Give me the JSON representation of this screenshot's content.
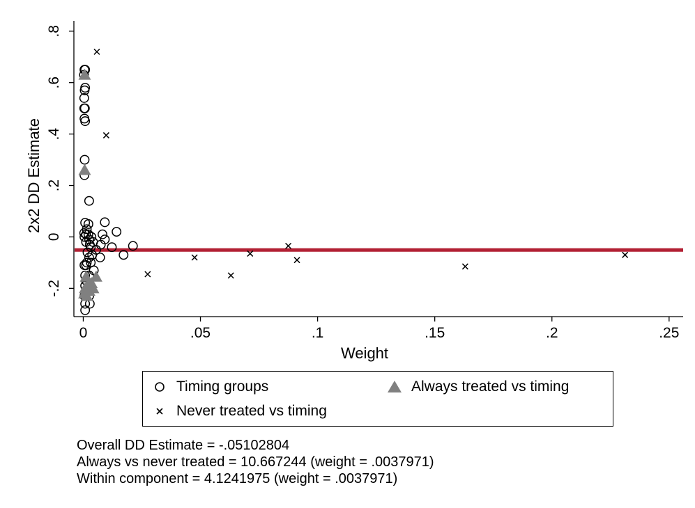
{
  "chart_data": {
    "type": "scatter",
    "xlabel": "Weight",
    "ylabel": "2x2 DD Estimate",
    "xlim": [
      -0.004,
      0.256
    ],
    "ylim": [
      -0.31,
      0.84
    ],
    "xticks": [
      0,
      0.05,
      0.1,
      0.15,
      0.2,
      0.25
    ],
    "xtick_labels": [
      "0",
      ".05",
      ".1",
      ".15",
      ".2",
      ".25"
    ],
    "yticks": [
      -0.2,
      0,
      0.2,
      0.4,
      0.6,
      0.8
    ],
    "ytick_labels": [
      "-.2",
      "0",
      ".2",
      ".4",
      ".6",
      ".8"
    ],
    "grid": false,
    "legend_position": "bottom",
    "reference_line": {
      "y": -0.05102804,
      "color": "#b22034"
    },
    "series": [
      {
        "name": "Timing groups",
        "marker": "circle",
        "color": "#000000",
        "points": [
          [
            0.0005,
            0.65
          ],
          [
            0.0008,
            0.65
          ],
          [
            0.0003,
            0.63
          ],
          [
            0.0008,
            0.58
          ],
          [
            0.0006,
            0.57
          ],
          [
            0.0004,
            0.54
          ],
          [
            0.0004,
            0.5
          ],
          [
            0.0007,
            0.5
          ],
          [
            0.0005,
            0.46
          ],
          [
            0.0008,
            0.45
          ],
          [
            0.0006,
            0.3
          ],
          [
            0.0005,
            0.24
          ],
          [
            0.0025,
            0.14
          ],
          [
            0.0008,
            0.055
          ],
          [
            0.0092,
            0.057
          ],
          [
            0.0022,
            0.05
          ],
          [
            0.0015,
            0.03
          ],
          [
            0.0142,
            0.02
          ],
          [
            0.0004,
            0.015
          ],
          [
            0.0012,
            0.01
          ],
          [
            0.0022,
            0.01
          ],
          [
            0.0082,
            0.01
          ],
          [
            0.0005,
            0.0
          ],
          [
            0.0035,
            0.0
          ],
          [
            0.0025,
            -0.01
          ],
          [
            0.0092,
            -0.01
          ],
          [
            0.0012,
            -0.02
          ],
          [
            0.0042,
            -0.02
          ],
          [
            0.0028,
            -0.03
          ],
          [
            0.0075,
            -0.03
          ],
          [
            0.0212,
            -0.035
          ],
          [
            0.0032,
            -0.04
          ],
          [
            0.0122,
            -0.04
          ],
          [
            0.0055,
            -0.05
          ],
          [
            0.0018,
            -0.06
          ],
          [
            0.0038,
            -0.07
          ],
          [
            0.0172,
            -0.07
          ],
          [
            0.0025,
            -0.08
          ],
          [
            0.0072,
            -0.08
          ],
          [
            0.0015,
            -0.1
          ],
          [
            0.0032,
            -0.1
          ],
          [
            0.0005,
            -0.11
          ],
          [
            0.0012,
            -0.11
          ],
          [
            0.0045,
            -0.13
          ],
          [
            0.0008,
            -0.15
          ],
          [
            0.0025,
            -0.15
          ],
          [
            0.0012,
            -0.17
          ],
          [
            0.0008,
            -0.19
          ],
          [
            0.0012,
            -0.21
          ],
          [
            0.0005,
            -0.23
          ],
          [
            0.0025,
            -0.23
          ],
          [
            0.0008,
            -0.26
          ],
          [
            0.0028,
            -0.26
          ],
          [
            0.0008,
            -0.285
          ]
        ]
      },
      {
        "name": "Never treated vs timing",
        "marker": "x",
        "color": "#000000",
        "points": [
          [
            0.0058,
            0.72
          ],
          [
            0.0098,
            0.395
          ],
          [
            0.0275,
            -0.145
          ],
          [
            0.0475,
            -0.08
          ],
          [
            0.063,
            -0.15
          ],
          [
            0.0712,
            -0.065
          ],
          [
            0.0875,
            -0.035
          ],
          [
            0.0912,
            -0.09
          ],
          [
            0.163,
            -0.115
          ],
          [
            0.2312,
            -0.07
          ]
        ]
      },
      {
        "name": "Always treated vs timing",
        "marker": "triangle",
        "color": "#808080",
        "points": [
          [
            0.0006,
            0.63
          ],
          [
            0.0006,
            0.26
          ],
          [
            0.0012,
            -0.155
          ],
          [
            0.0055,
            -0.155
          ],
          [
            0.0035,
            -0.18
          ],
          [
            0.0018,
            -0.19
          ],
          [
            0.0008,
            -0.2
          ],
          [
            0.0042,
            -0.2
          ],
          [
            0.0025,
            -0.21
          ],
          [
            0.0005,
            -0.22
          ],
          [
            0.0015,
            -0.23
          ]
        ]
      }
    ],
    "notes": [
      "Overall DD Estimate = -.05102804",
      "Always vs never treated = 10.667244 (weight = .0037971)",
      "Within component = 4.1241975 (weight = .0037971)"
    ]
  }
}
